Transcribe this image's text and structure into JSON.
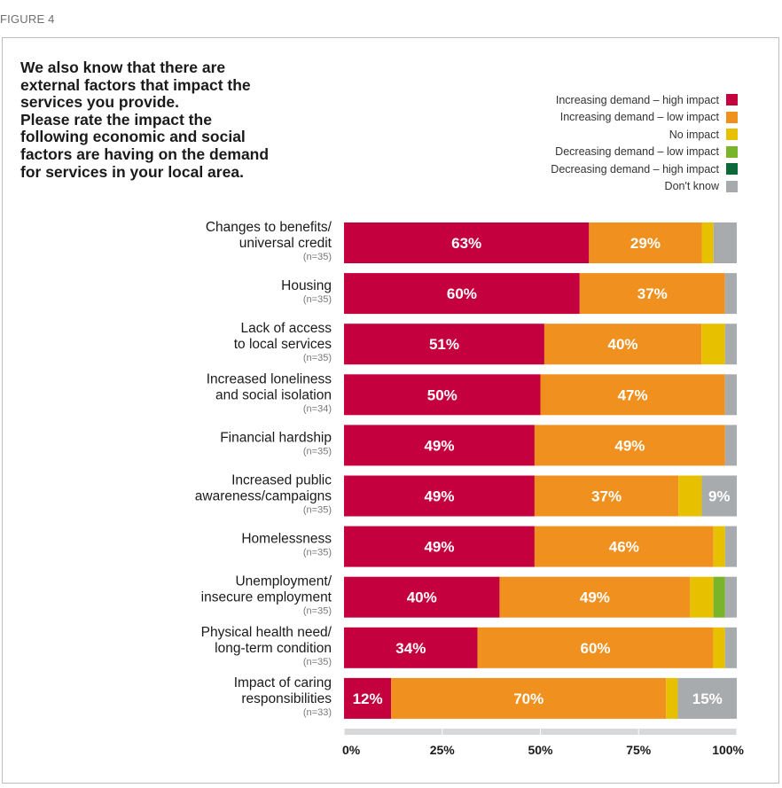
{
  "figure_label": "FIGURE 4",
  "title_lines": [
    "We also know that there are",
    "external factors that impact the",
    "services you provide.",
    "Please rate the impact the",
    "following economic and social",
    "factors are having on the demand",
    "for services in your local area."
  ],
  "colors": {
    "high_increase": "#c4003f",
    "low_increase": "#f0901f",
    "no_impact": "#e7c100",
    "low_decrease": "#79b52b",
    "high_decrease": "#0c6a3a",
    "dont_know": "#a8abae",
    "axis_track": "#d6d8da"
  },
  "chart_data": {
    "type": "bar",
    "orientation": "horizontal",
    "stacked": true,
    "xlim": [
      0,
      100
    ],
    "x_ticks": [
      "0%",
      "25%",
      "50%",
      "75%",
      "100%"
    ],
    "legend_position": "top-right",
    "series": [
      {
        "name": "Increasing demand – high impact",
        "color": "#c4003f"
      },
      {
        "name": "Increasing demand – low impact",
        "color": "#f0901f"
      },
      {
        "name": "No impact",
        "color": "#e7c100"
      },
      {
        "name": "Decreasing demand – low impact",
        "color": "#79b52b"
      },
      {
        "name": "Decreasing demand – high impact",
        "color": "#0c6a3a"
      },
      {
        "name": "Don't know",
        "color": "#a8abae"
      }
    ],
    "categories": [
      {
        "label": [
          "Changes to benefits/",
          "universal credit"
        ],
        "n": "(n=35)",
        "values": [
          63,
          29,
          3,
          0,
          0,
          6
        ],
        "labels": [
          "63%",
          "29%",
          "",
          "",
          "",
          ""
        ]
      },
      {
        "label": [
          "Housing"
        ],
        "n": "(n=35)",
        "values": [
          60,
          37,
          0,
          0,
          0,
          3
        ],
        "labels": [
          "60%",
          "37%",
          "",
          "",
          "",
          ""
        ]
      },
      {
        "label": [
          "Lack of access",
          "to local services"
        ],
        "n": "(n=35)",
        "values": [
          51,
          40,
          6,
          0,
          0,
          3
        ],
        "labels": [
          "51%",
          "40%",
          "",
          "",
          "",
          ""
        ]
      },
      {
        "label": [
          "Increased loneliness",
          "and social isolation"
        ],
        "n": "(n=34)",
        "values": [
          50,
          47,
          0,
          0,
          0,
          3
        ],
        "labels": [
          "50%",
          "47%",
          "",
          "",
          "",
          ""
        ]
      },
      {
        "label": [
          "Financial hardship"
        ],
        "n": "(n=35)",
        "values": [
          49,
          49,
          0,
          0,
          0,
          3
        ],
        "labels": [
          "49%",
          "49%",
          "",
          "",
          "",
          ""
        ]
      },
      {
        "label": [
          "Increased public",
          "awareness/campaigns"
        ],
        "n": "(n=35)",
        "values": [
          49,
          37,
          6,
          0,
          0,
          9
        ],
        "labels": [
          "49%",
          "37%",
          "",
          "",
          "",
          "9%"
        ]
      },
      {
        "label": [
          "Homelessness"
        ],
        "n": "(n=35)",
        "values": [
          49,
          46,
          3,
          0,
          0,
          3
        ],
        "labels": [
          "49%",
          "46%",
          "",
          "",
          "",
          ""
        ]
      },
      {
        "label": [
          "Unemployment/",
          "insecure employment"
        ],
        "n": "(n=35)",
        "values": [
          40,
          49,
          6,
          3,
          0,
          3
        ],
        "labels": [
          "40%",
          "49%",
          "",
          "",
          "",
          ""
        ]
      },
      {
        "label": [
          "Physical health need/",
          "long-term condition"
        ],
        "n": "(n=35)",
        "values": [
          34,
          60,
          3,
          0,
          0,
          3
        ],
        "labels": [
          "34%",
          "60%",
          "",
          "",
          "",
          ""
        ]
      },
      {
        "label": [
          "Impact of caring",
          "responsibilities"
        ],
        "n": "(n=33)",
        "values": [
          12,
          70,
          3,
          0,
          0,
          15
        ],
        "labels": [
          "12%",
          "70%",
          "",
          "",
          "",
          "15%"
        ]
      }
    ]
  }
}
